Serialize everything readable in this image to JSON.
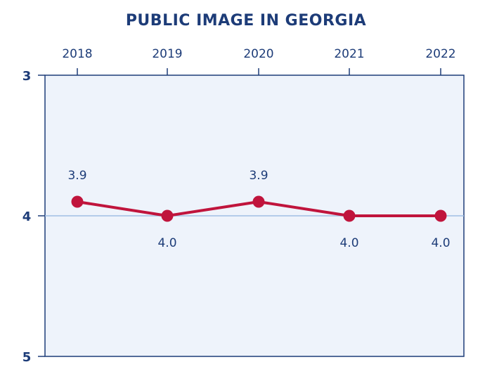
{
  "chart_data": {
    "type": "line",
    "title": "PUBLIC IMAGE IN GEORGIA",
    "categories": [
      "2018",
      "2019",
      "2020",
      "2021",
      "2022"
    ],
    "series": [
      {
        "values": [
          3.9,
          4.0,
          3.9,
          4.0,
          4.0
        ],
        "color": "#c0143c"
      }
    ],
    "data_labels": [
      "3.9",
      "4.0",
      "3.9",
      "4.0",
      "4.0"
    ],
    "yticks": [
      "3",
      "4",
      "5"
    ],
    "ylim": [
      3,
      5
    ],
    "y_inverted": true,
    "x_axis_position": "top",
    "grid": false,
    "reference_line_value": 4,
    "plot_background": "#eef3fb",
    "axis_color": "#1d3c78",
    "line_color": "#c0143c"
  }
}
